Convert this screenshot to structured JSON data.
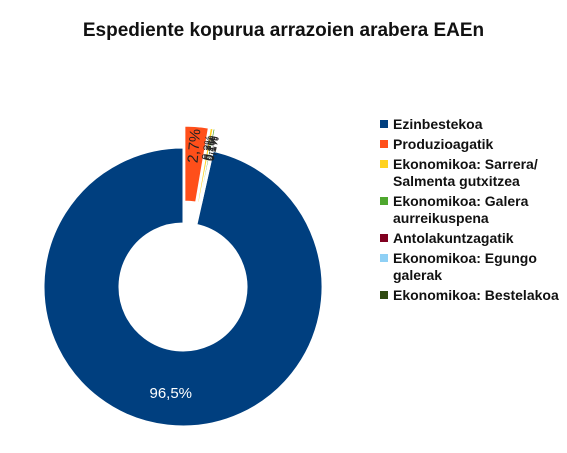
{
  "chart_data": {
    "type": "pie",
    "variant": "donut",
    "title": "Espediente kopurua arrazoien arabera EAEn",
    "categories": [
      "Ezinbestekoa",
      "Produzioagatik",
      "Ekonomikoa: Sarrera/ Salmenta gutxitzea",
      "Ekonomikoa: Galera aurreikuspena",
      "Antolakuntzagatik",
      "Ekonomikoa: Egungo galerak",
      "Ekonomikoa: Bestelakoa"
    ],
    "values": [
      96.5,
      2.7,
      0.3,
      0.2,
      0.1,
      0.1,
      0.1
    ],
    "value_labels": [
      "96,5%",
      "2,7%",
      "0,3%",
      "0,2%",
      "0,1%",
      "0,1%",
      "0,1%"
    ],
    "colors": [
      "#003f7f",
      "#ff4f1a",
      "#ffd21f",
      "#4ea72e",
      "#800020",
      "#8fd0f5",
      "#2f4a10"
    ],
    "legend_position": "right",
    "exploded_slices": [
      "Produzioagatik",
      "Ekonomikoa: Sarrera/ Salmenta gutxitzea",
      "Ekonomikoa: Galera aurreikuspena",
      "Antolakuntzagatik",
      "Ekonomikoa: Egungo galerak",
      "Ekonomikoa: Bestelakoa"
    ]
  }
}
